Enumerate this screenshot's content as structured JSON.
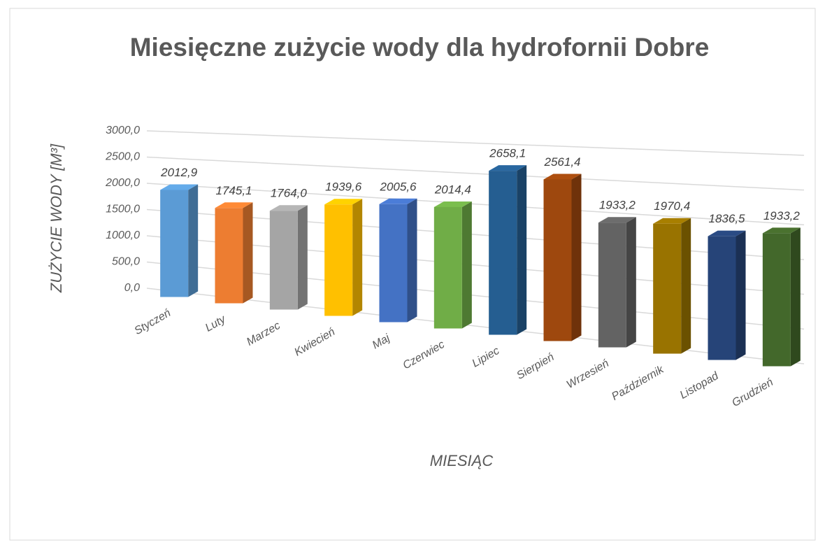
{
  "chart_data": {
    "type": "bar3d",
    "title": "Miesięczne zużycie wody dla hydrofornii Dobre",
    "y_label": "ZUŻYCIE WODY [M³]",
    "x_label": "MIESIĄC",
    "categories": [
      "Styczeń",
      "Luty",
      "Marzec",
      "Kwiecień",
      "Maj",
      "Czerwiec",
      "Lipiec",
      "Sierpień",
      "Wrzesień",
      "Październik",
      "Listopad",
      "Grudzień"
    ],
    "values": [
      2012.9,
      1745.1,
      1764.0,
      1939.6,
      2005.6,
      2014.4,
      2658.1,
      2561.4,
      1933.2,
      1970.4,
      1836.5,
      1933.2
    ],
    "value_labels": [
      "2012,9",
      "1745,1",
      "1764,0",
      "1939,6",
      "2005,6",
      "2014,4",
      "2658,1",
      "2561,4",
      "1933,2",
      "1970,4",
      "1836,5",
      "1933,2"
    ],
    "colors": [
      "#5b9bd5",
      "#ed7d31",
      "#a5a5a5",
      "#ffc000",
      "#4472c4",
      "#70ad47",
      "#255e91",
      "#9e480e",
      "#636363",
      "#997300",
      "#264478",
      "#43682b"
    ],
    "ylim": [
      0,
      3000
    ],
    "yticks": [
      {
        "value": 0,
        "label": "0,0"
      },
      {
        "value": 500,
        "label": "500,0"
      },
      {
        "value": 1000,
        "label": "1000,0"
      },
      {
        "value": 1500,
        "label": "1500,0"
      },
      {
        "value": 2000,
        "label": "2000,0"
      },
      {
        "value": 2500,
        "label": "2500,0"
      },
      {
        "value": 3000,
        "label": "3000,0"
      }
    ],
    "grid": true
  }
}
